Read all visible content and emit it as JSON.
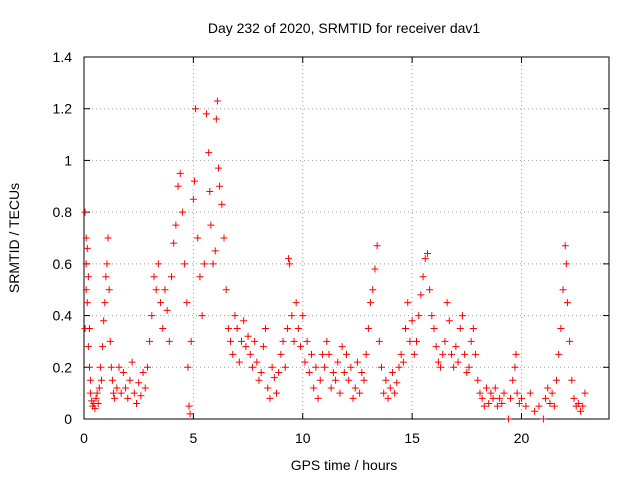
{
  "chart_data": {
    "type": "scatter",
    "title": "Day 232 of 2020, SRMTID for receiver dav1",
    "xlabel": "GPS time / hours",
    "ylabel": "SRMTID / TECUs",
    "xlim": [
      0,
      24
    ],
    "ylim": [
      0,
      1.4
    ],
    "xticks": [
      0,
      5,
      10,
      15,
      20
    ],
    "xtick_labels": [
      "0",
      "5",
      "10",
      "15",
      "20"
    ],
    "yticks": [
      0,
      0.2,
      0.4,
      0.6,
      0.8,
      1.0,
      1.2,
      1.4
    ],
    "ytick_labels": [
      "0",
      "0.2",
      "0.4",
      "0.6",
      "0.8",
      "1",
      "1.2",
      "1.4"
    ],
    "grid": true,
    "marker": "+",
    "color": "#ff0000",
    "series": [
      {
        "name": "SRMTID",
        "points": [
          [
            0.05,
            0.35
          ],
          [
            0.05,
            0.8
          ],
          [
            0.1,
            0.7
          ],
          [
            0.1,
            0.6
          ],
          [
            0.1,
            0.5
          ],
          [
            0.15,
            0.66
          ],
          [
            0.15,
            0.45
          ],
          [
            0.2,
            0.28
          ],
          [
            0.2,
            0.55
          ],
          [
            0.25,
            0.2
          ],
          [
            0.25,
            0.35
          ],
          [
            0.3,
            0.15
          ],
          [
            0.3,
            0.1
          ],
          [
            0.35,
            0.07
          ],
          [
            0.4,
            0.05
          ],
          [
            0.45,
            0.06
          ],
          [
            0.5,
            0.04
          ],
          [
            0.55,
            0.08
          ],
          [
            0.6,
            0.1
          ],
          [
            0.65,
            0.06
          ],
          [
            0.7,
            0.12
          ],
          [
            0.75,
            0.2
          ],
          [
            0.8,
            0.15
          ],
          [
            0.85,
            0.28
          ],
          [
            0.9,
            0.38
          ],
          [
            0.95,
            0.45
          ],
          [
            1.0,
            0.55
          ],
          [
            1.05,
            0.6
          ],
          [
            1.1,
            0.7
          ],
          [
            1.15,
            0.5
          ],
          [
            1.2,
            0.3
          ],
          [
            1.25,
            0.2
          ],
          [
            1.3,
            0.15
          ],
          [
            1.35,
            0.1
          ],
          [
            1.4,
            0.08
          ],
          [
            1.5,
            0.12
          ],
          [
            1.6,
            0.2
          ],
          [
            1.7,
            0.1
          ],
          [
            1.8,
            0.18
          ],
          [
            1.9,
            0.12
          ],
          [
            2.0,
            0.08
          ],
          [
            2.1,
            0.15
          ],
          [
            2.2,
            0.22
          ],
          [
            2.3,
            0.1
          ],
          [
            2.4,
            0.06
          ],
          [
            2.5,
            0.14
          ],
          [
            2.6,
            0.09
          ],
          [
            2.7,
            0.18
          ],
          [
            2.8,
            0.12
          ],
          [
            2.9,
            0.2
          ],
          [
            3.0,
            0.3
          ],
          [
            3.1,
            0.4
          ],
          [
            3.2,
            0.55
          ],
          [
            3.3,
            0.5
          ],
          [
            3.4,
            0.6
          ],
          [
            3.5,
            0.45
          ],
          [
            3.6,
            0.35
          ],
          [
            3.7,
            0.5
          ],
          [
            3.8,
            0.42
          ],
          [
            3.9,
            0.3
          ],
          [
            4.0,
            0.55
          ],
          [
            4.1,
            0.68
          ],
          [
            4.2,
            0.75
          ],
          [
            4.3,
            0.9
          ],
          [
            4.4,
            0.95
          ],
          [
            4.5,
            0.8
          ],
          [
            4.6,
            0.6
          ],
          [
            4.7,
            0.45
          ],
          [
            4.75,
            0.2
          ],
          [
            4.8,
            0.05
          ],
          [
            4.85,
            0.02
          ],
          [
            4.9,
            0.3
          ],
          [
            5.0,
            0.85
          ],
          [
            5.05,
            0.92
          ],
          [
            5.1,
            1.2
          ],
          [
            5.2,
            0.7
          ],
          [
            5.3,
            0.55
          ],
          [
            5.4,
            0.4
          ],
          [
            5.5,
            0.6
          ],
          [
            5.6,
            1.18
          ],
          [
            5.7,
            1.03
          ],
          [
            5.75,
            0.88
          ],
          [
            5.8,
            0.75
          ],
          [
            5.9,
            0.6
          ],
          [
            6.0,
            0.65
          ],
          [
            6.05,
            1.16
          ],
          [
            6.1,
            1.23
          ],
          [
            6.15,
            0.97
          ],
          [
            6.2,
            0.9
          ],
          [
            6.3,
            0.83
          ],
          [
            6.4,
            0.7
          ],
          [
            6.5,
            0.5
          ],
          [
            6.6,
            0.35
          ],
          [
            6.7,
            0.3
          ],
          [
            6.8,
            0.25
          ],
          [
            6.9,
            0.4
          ],
          [
            7.0,
            0.35
          ],
          [
            7.1,
            0.22
          ],
          [
            7.2,
            0.3
          ],
          [
            7.3,
            0.38
          ],
          [
            7.4,
            0.28
          ],
          [
            7.5,
            0.32
          ],
          [
            7.6,
            0.25
          ],
          [
            7.7,
            0.2
          ],
          [
            7.8,
            0.3
          ],
          [
            7.9,
            0.22
          ],
          [
            8.0,
            0.15
          ],
          [
            8.1,
            0.18
          ],
          [
            8.2,
            0.28
          ],
          [
            8.3,
            0.35
          ],
          [
            8.4,
            0.12
          ],
          [
            8.5,
            0.08
          ],
          [
            8.6,
            0.2
          ],
          [
            8.7,
            0.16
          ],
          [
            8.8,
            0.1
          ],
          [
            8.9,
            0.18
          ],
          [
            9.0,
            0.25
          ],
          [
            9.1,
            0.3
          ],
          [
            9.2,
            0.2
          ],
          [
            9.3,
            0.35
          ],
          [
            9.35,
            0.62
          ],
          [
            9.4,
            0.6
          ],
          [
            9.5,
            0.4
          ],
          [
            9.6,
            0.3
          ],
          [
            9.7,
            0.45
          ],
          [
            9.8,
            0.35
          ],
          [
            9.9,
            0.28
          ],
          [
            10.0,
            0.4
          ],
          [
            10.1,
            0.22
          ],
          [
            10.2,
            0.3
          ],
          [
            10.3,
            0.18
          ],
          [
            10.4,
            0.25
          ],
          [
            10.5,
            0.12
          ],
          [
            10.6,
            0.2
          ],
          [
            10.7,
            0.08
          ],
          [
            10.8,
            0.15
          ],
          [
            10.9,
            0.25
          ],
          [
            11.0,
            0.2
          ],
          [
            11.1,
            0.3
          ],
          [
            11.2,
            0.25
          ],
          [
            11.3,
            0.12
          ],
          [
            11.4,
            0.18
          ],
          [
            11.5,
            0.15
          ],
          [
            11.6,
            0.22
          ],
          [
            11.7,
            0.1
          ],
          [
            11.8,
            0.28
          ],
          [
            11.9,
            0.18
          ],
          [
            12.0,
            0.25
          ],
          [
            12.1,
            0.15
          ],
          [
            12.2,
            0.2
          ],
          [
            12.3,
            0.08
          ],
          [
            12.4,
            0.12
          ],
          [
            12.5,
            0.22
          ],
          [
            12.6,
            0.1
          ],
          [
            12.7,
            0.18
          ],
          [
            12.8,
            0.15
          ],
          [
            12.9,
            0.25
          ],
          [
            13.0,
            0.35
          ],
          [
            13.1,
            0.45
          ],
          [
            13.2,
            0.5
          ],
          [
            13.3,
            0.58
          ],
          [
            13.4,
            0.67
          ],
          [
            13.5,
            0.3
          ],
          [
            13.6,
            0.2
          ],
          [
            13.7,
            0.1
          ],
          [
            13.8,
            0.15
          ],
          [
            13.9,
            0.08
          ],
          [
            14.0,
            0.12
          ],
          [
            14.1,
            0.18
          ],
          [
            14.2,
            0.1
          ],
          [
            14.3,
            0.14
          ],
          [
            14.4,
            0.2
          ],
          [
            14.5,
            0.25
          ],
          [
            14.6,
            0.22
          ],
          [
            14.7,
            0.35
          ],
          [
            14.8,
            0.45
          ],
          [
            14.9,
            0.3
          ],
          [
            15.0,
            0.38
          ],
          [
            15.1,
            0.25
          ],
          [
            15.2,
            0.3
          ],
          [
            15.3,
            0.4
          ],
          [
            15.4,
            0.48
          ],
          [
            15.5,
            0.55
          ],
          [
            15.6,
            0.62
          ],
          [
            15.7,
            0.64
          ],
          [
            15.8,
            0.5
          ],
          [
            15.9,
            0.4
          ],
          [
            16.0,
            0.35
          ],
          [
            16.1,
            0.28
          ],
          [
            16.2,
            0.22
          ],
          [
            16.3,
            0.2
          ],
          [
            16.4,
            0.25
          ],
          [
            16.5,
            0.3
          ],
          [
            16.6,
            0.45
          ],
          [
            16.7,
            0.38
          ],
          [
            16.8,
            0.25
          ],
          [
            16.9,
            0.2
          ],
          [
            17.0,
            0.28
          ],
          [
            17.1,
            0.22
          ],
          [
            17.2,
            0.35
          ],
          [
            17.3,
            0.4
          ],
          [
            17.4,
            0.25
          ],
          [
            17.5,
            0.18
          ],
          [
            17.6,
            0.2
          ],
          [
            17.7,
            0.3
          ],
          [
            17.8,
            0.35
          ],
          [
            17.9,
            0.25
          ],
          [
            18.0,
            0.15
          ],
          [
            18.1,
            0.1
          ],
          [
            18.2,
            0.08
          ],
          [
            18.3,
            0.05
          ],
          [
            18.4,
            0.12
          ],
          [
            18.5,
            0.06
          ],
          [
            18.6,
            0.1
          ],
          [
            18.7,
            0.08
          ],
          [
            18.8,
            0.12
          ],
          [
            18.9,
            0.05
          ],
          [
            19.0,
            0.08
          ],
          [
            19.1,
            0.06
          ],
          [
            19.2,
            0.1
          ],
          [
            19.4,
            0.0
          ],
          [
            19.5,
            0.08
          ],
          [
            19.6,
            0.15
          ],
          [
            19.7,
            0.2
          ],
          [
            19.75,
            0.25
          ],
          [
            19.8,
            0.1
          ],
          [
            19.9,
            0.06
          ],
          [
            20.0,
            0.08
          ],
          [
            20.2,
            0.05
          ],
          [
            20.4,
            0.1
          ],
          [
            20.6,
            0.03
          ],
          [
            20.8,
            0.05
          ],
          [
            21.0,
            0.0
          ],
          [
            21.1,
            0.08
          ],
          [
            21.2,
            0.12
          ],
          [
            21.3,
            0.06
          ],
          [
            21.4,
            0.1
          ],
          [
            21.5,
            0.05
          ],
          [
            21.6,
            0.15
          ],
          [
            21.7,
            0.25
          ],
          [
            21.8,
            0.35
          ],
          [
            21.9,
            0.5
          ],
          [
            22.0,
            0.67
          ],
          [
            22.05,
            0.6
          ],
          [
            22.1,
            0.45
          ],
          [
            22.2,
            0.3
          ],
          [
            22.3,
            0.15
          ],
          [
            22.4,
            0.08
          ],
          [
            22.5,
            0.05
          ],
          [
            22.6,
            0.06
          ],
          [
            22.7,
            0.03
          ],
          [
            22.8,
            0.05
          ],
          [
            22.9,
            0.1
          ]
        ]
      }
    ]
  }
}
